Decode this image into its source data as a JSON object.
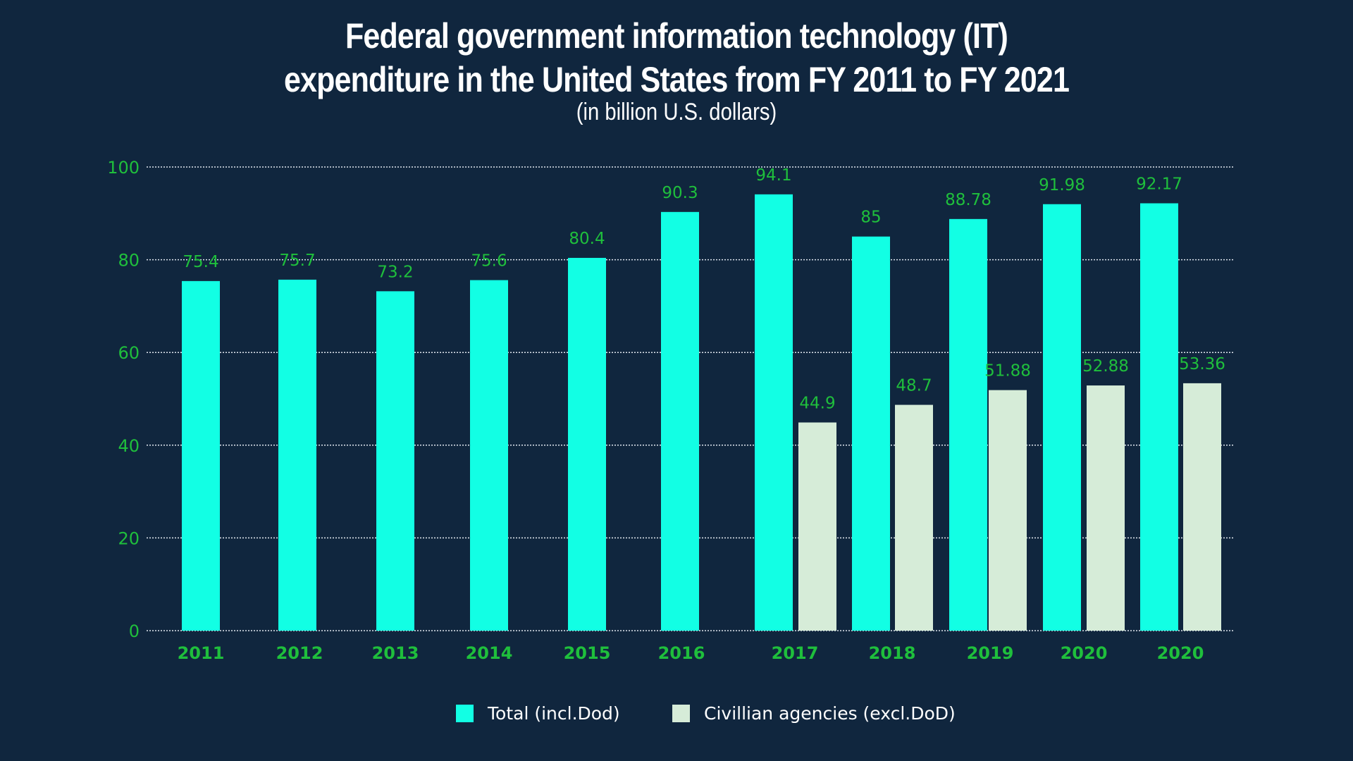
{
  "chart_data": {
    "type": "bar",
    "title_lines": [
      "Federal government information technology (IT)",
      "expenditure in the United States from FY 2011 to FY 2021"
    ],
    "subtitle": "(in billion U.S. dollars)",
    "categories": [
      "2011",
      "2012",
      "2013",
      "2014",
      "2015",
      "2016",
      "2017",
      "2018",
      "2019",
      "2020",
      "2020"
    ],
    "series": [
      {
        "name": "Total (incl.Dod)",
        "color": "#12ffe4",
        "values": [
          75.4,
          75.7,
          73.2,
          75.6,
          80.4,
          90.3,
          94.1,
          85,
          88.78,
          91.98,
          92.17
        ]
      },
      {
        "name": "Civillian agencies (excl.DoD)",
        "color": "#d6ecd8",
        "values": [
          null,
          null,
          null,
          null,
          null,
          null,
          44.9,
          48.7,
          51.88,
          52.88,
          53.36
        ]
      }
    ],
    "y_ticks": [
      0,
      20,
      40,
      60,
      80,
      100
    ],
    "ylim": [
      0,
      100
    ],
    "grid": true,
    "legend_position": "bottom",
    "label_color": "#1fbf3c",
    "background": "#10263e"
  }
}
